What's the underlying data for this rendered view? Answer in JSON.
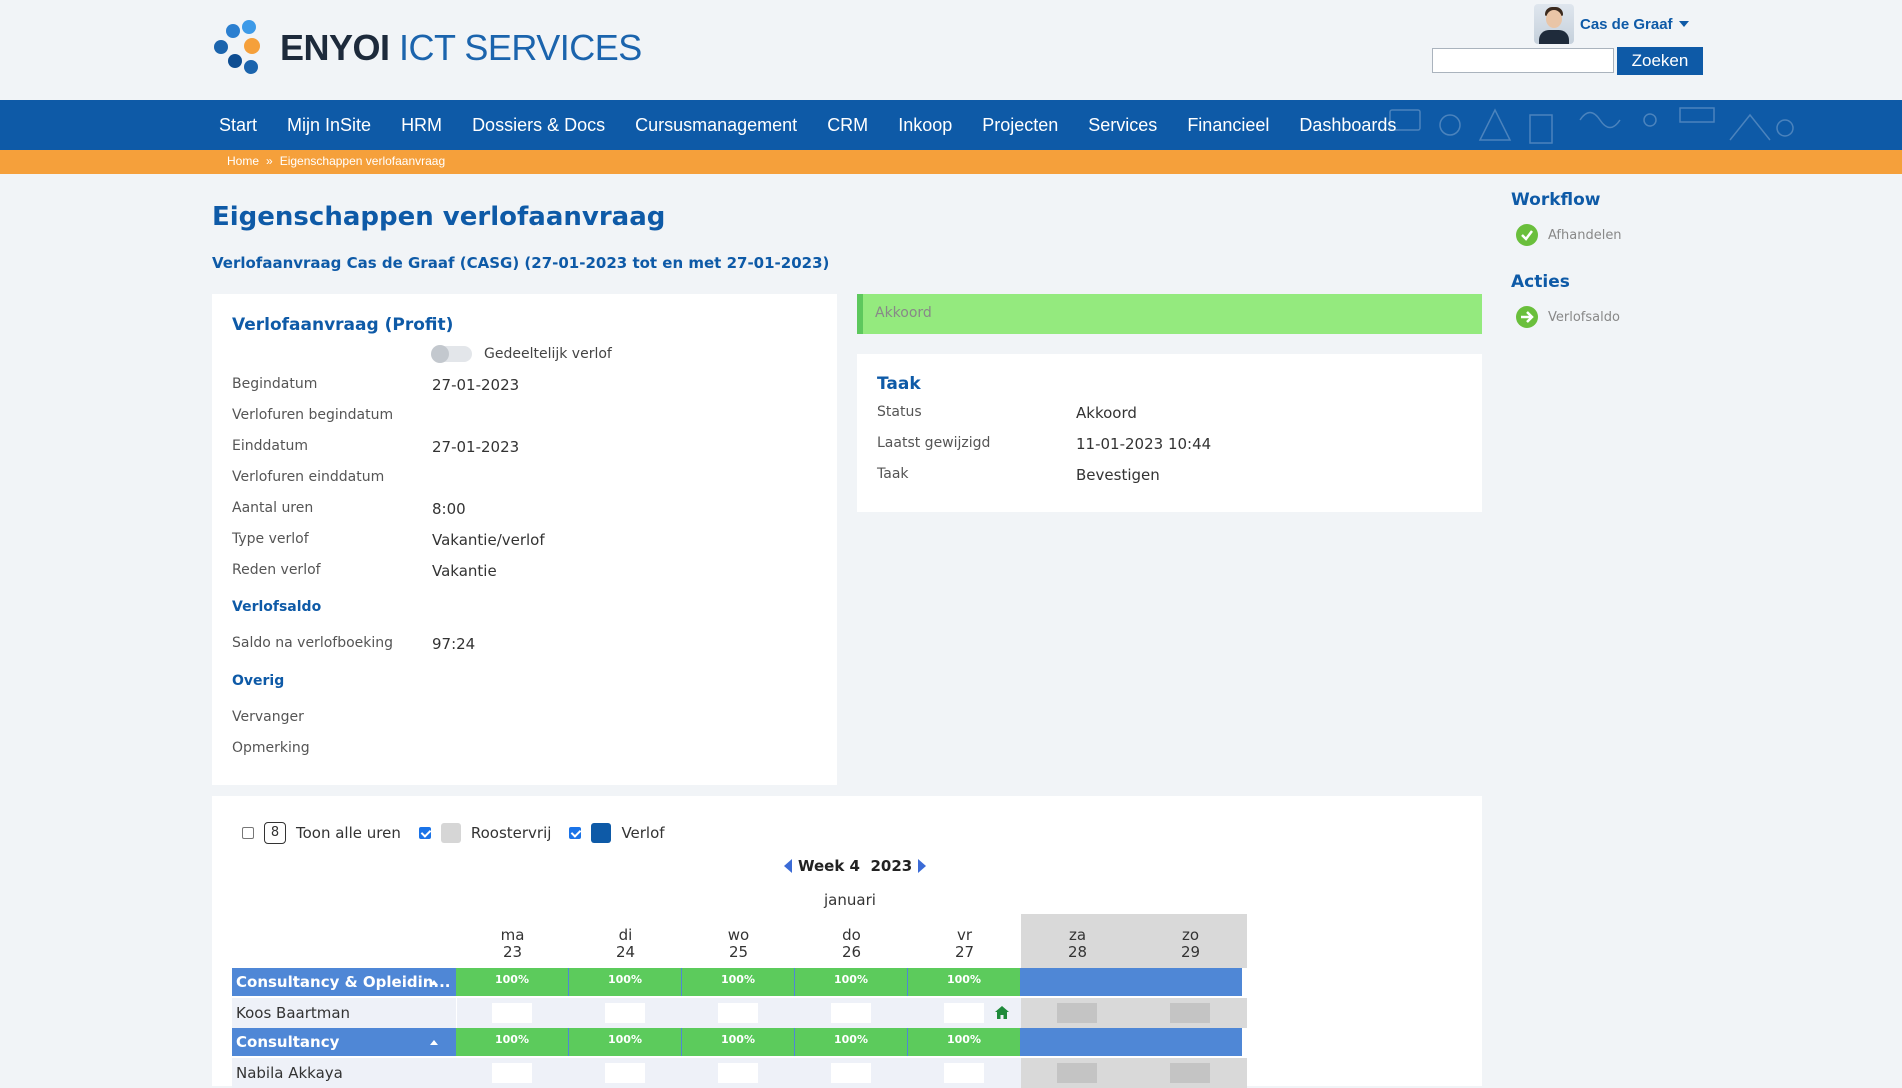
{
  "brand": {
    "bold": "ENYOI",
    "rest": "ICT SERVICES"
  },
  "user": {
    "name": "Cas de Graaf"
  },
  "search": {
    "button": "Zoeken",
    "placeholder": ""
  },
  "nav": [
    "Start",
    "Mijn InSite",
    "HRM",
    "Dossiers & Docs",
    "Cursusmanagement",
    "CRM",
    "Inkoop",
    "Projecten",
    "Services",
    "Financieel",
    "Dashboards"
  ],
  "breadcrumb": [
    "Home",
    "Eigenschappen verlofaanvraag"
  ],
  "page": {
    "title": "Eigenschappen verlofaanvraag",
    "subtitle": "Verlofaanvraag Cas de Graaf (CASG) (27-01-2023 tot en met 27-01-2023)"
  },
  "request": {
    "title": "Verlofaanvraag (Profit)",
    "partial_label": "Gedeeltelijk verlof",
    "fields": [
      {
        "label": "Begindatum",
        "value": "27-01-2023"
      },
      {
        "label": "Verlofuren begindatum",
        "value": ""
      },
      {
        "label": "Einddatum",
        "value": "27-01-2023"
      },
      {
        "label": "Verlofuren einddatum",
        "value": ""
      },
      {
        "label": "Aantal uren",
        "value": "8:00"
      },
      {
        "label": "Type verlof",
        "value": "Vakantie/verlof"
      },
      {
        "label": "Reden verlof",
        "value": "Vakantie"
      }
    ],
    "saldo_title": "Verlofsaldo",
    "saldo": {
      "label": "Saldo na verlofboeking",
      "value": "97:24"
    },
    "other_title": "Overig",
    "other": [
      {
        "label": "Vervanger",
        "value": ""
      },
      {
        "label": "Opmerking",
        "value": ""
      }
    ]
  },
  "status_banner": "Akkoord",
  "task": {
    "title": "Taak",
    "fields": [
      {
        "label": "Status",
        "value": "Akkoord"
      },
      {
        "label": "Laatst gewijzigd",
        "value": "11-01-2023 10:44"
      },
      {
        "label": "Taak",
        "value": "Bevestigen"
      }
    ]
  },
  "sidebar": {
    "workflow_title": "Workflow",
    "workflow_item": "Afhandelen",
    "actions_title": "Acties",
    "actions_item": "Verlofsaldo"
  },
  "calendar": {
    "hours_badge": "8",
    "show_all": "Toon alle uren",
    "roostervrij": "Roostervrij",
    "verlof": "Verlof",
    "week": "Week 4",
    "year": "2023",
    "month": "januari",
    "days": [
      {
        "d": "ma",
        "n": "23"
      },
      {
        "d": "di",
        "n": "24"
      },
      {
        "d": "wo",
        "n": "25"
      },
      {
        "d": "do",
        "n": "26"
      },
      {
        "d": "vr",
        "n": "27"
      },
      {
        "d": "za",
        "n": "28"
      },
      {
        "d": "zo",
        "n": "29"
      }
    ],
    "groups": [
      {
        "name": "Consultancy & Opleidin...",
        "pcts": [
          "100%",
          "100%",
          "100%",
          "100%",
          "100%"
        ],
        "person": "Koos Baartman"
      },
      {
        "name": "Consultancy",
        "pcts": [
          "100%",
          "100%",
          "100%",
          "100%",
          "100%"
        ],
        "person": "Nabila Akkaya"
      }
    ]
  },
  "colors": {
    "primary": "#0e5aa7",
    "accent": "#f5a03b",
    "success": "#5ccb5c",
    "banner": "#94ea7e"
  }
}
